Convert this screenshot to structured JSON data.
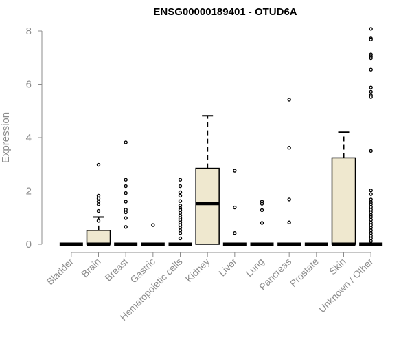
{
  "chart_data": {
    "type": "box",
    "title": "ENSG00000189401 - OTUD6A",
    "ylabel": "Expression",
    "ylim": [
      0,
      8.2
    ],
    "yticks": [
      0,
      2,
      4,
      6,
      8
    ],
    "box_fill": "#efe8cf",
    "categories": [
      "Bladder",
      "Brain",
      "Breast",
      "Gastric",
      "Hematopoietic cells",
      "Kidney",
      "Liver",
      "Lung",
      "Pancreas",
      "Prostate",
      "Skin",
      "Unknown / Other"
    ],
    "boxes": [
      {
        "category": "Bladder",
        "q1": 0,
        "median": 0,
        "q3": 0,
        "whisker_low": 0,
        "whisker_high": 0,
        "outliers": []
      },
      {
        "category": "Brain",
        "q1": 0,
        "median": 0,
        "q3": 0.52,
        "whisker_low": 0,
        "whisker_high": 1.02,
        "outliers": [
          2.98,
          1.82,
          1.72,
          1.6,
          1.5,
          1.25,
          0.88
        ]
      },
      {
        "category": "Breast",
        "q1": 0,
        "median": 0,
        "q3": 0,
        "whisker_low": 0,
        "whisker_high": 0,
        "outliers": [
          3.82,
          2.42,
          2.18,
          1.92,
          1.6,
          1.3,
          1.2,
          0.98,
          0.65
        ]
      },
      {
        "category": "Gastric",
        "q1": 0,
        "median": 0,
        "q3": 0,
        "whisker_low": 0,
        "whisker_high": 0,
        "outliers": [
          0.72
        ]
      },
      {
        "category": "Hematopoietic cells",
        "q1": 0,
        "median": 0,
        "q3": 0,
        "whisker_low": 0,
        "whisker_high": 0,
        "outliers": [
          2.42,
          2.18,
          1.95,
          1.82,
          1.62,
          1.45,
          1.35,
          1.28,
          1.18,
          1.08,
          0.98,
          0.9,
          0.82,
          0.72,
          0.62,
          0.52,
          0.42,
          0.22
        ]
      },
      {
        "category": "Kidney",
        "q1": 0,
        "median": 1.53,
        "q3": 2.85,
        "whisker_low": 0,
        "whisker_high": 4.82,
        "outliers": []
      },
      {
        "category": "Liver",
        "q1": 0,
        "median": 0,
        "q3": 0,
        "whisker_low": 0,
        "whisker_high": 0,
        "outliers": [
          2.76,
          1.38,
          0.42
        ]
      },
      {
        "category": "Lung",
        "q1": 0,
        "median": 0,
        "q3": 0,
        "whisker_low": 0,
        "whisker_high": 0,
        "outliers": [
          1.6,
          1.52,
          1.28,
          0.8
        ]
      },
      {
        "category": "Pancreas",
        "q1": 0,
        "median": 0,
        "q3": 0,
        "whisker_low": 0,
        "whisker_high": 0,
        "outliers": [
          5.42,
          3.62,
          1.68,
          0.82
        ]
      },
      {
        "category": "Prostate",
        "q1": 0,
        "median": 0,
        "q3": 0,
        "whisker_low": 0,
        "whisker_high": 0,
        "outliers": []
      },
      {
        "category": "Skin",
        "q1": 0,
        "median": 0,
        "q3": 3.24,
        "whisker_low": 0,
        "whisker_high": 4.2,
        "outliers": []
      },
      {
        "category": "Unknown / Other",
        "q1": 0,
        "median": 0,
        "q3": 0,
        "whisker_low": 0,
        "whisker_high": 0,
        "outliers": [
          8.08,
          7.72,
          7.68,
          7.12,
          7.05,
          6.98,
          6.55,
          5.88,
          5.72,
          5.58,
          5.52,
          3.5,
          2.02,
          1.88,
          1.68,
          1.58,
          1.5,
          1.4,
          1.3,
          1.2,
          1.1,
          1.02,
          0.92,
          0.82,
          0.72,
          0.62,
          0.52,
          0.42,
          0.32,
          0.22,
          0.12
        ]
      }
    ]
  }
}
